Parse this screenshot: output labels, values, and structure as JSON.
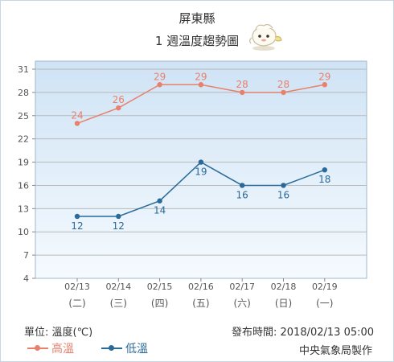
{
  "header": {
    "location": "屏東縣",
    "subtitle": "1 週溫度趨勢圖"
  },
  "footer": {
    "unit": "單位: 溫度(℃)",
    "issued": "發布時間: 2018/02/13 05:00",
    "producer": "中央氣象局製作"
  },
  "legend": {
    "high": "高溫",
    "low": "低溫"
  },
  "colors": {
    "high": "#e8806c",
    "low": "#2a6a99",
    "plot_top": "#cfe3f5",
    "plot_bottom": "#f5fafe",
    "grid": "#b9b9b9"
  },
  "chart_data": {
    "type": "line",
    "title": "1 週溫度趨勢圖",
    "categories": [
      "02/13",
      "02/14",
      "02/15",
      "02/16",
      "02/17",
      "02/18",
      "02/19"
    ],
    "weekdays": [
      "(二)",
      "(三)",
      "(四)",
      "(五)",
      "(六)",
      "(日)",
      "(一)"
    ],
    "ylim": [
      4,
      31
    ],
    "yticks": [
      4,
      7,
      10,
      13,
      16,
      19,
      22,
      25,
      28,
      31
    ],
    "grid": true,
    "legend_position": "bottom-left",
    "series": [
      {
        "name": "高溫",
        "values": [
          24,
          26,
          29,
          29,
          28,
          28,
          29
        ]
      },
      {
        "name": "低溫",
        "values": [
          12,
          12,
          14,
          19,
          16,
          16,
          18
        ]
      }
    ]
  }
}
